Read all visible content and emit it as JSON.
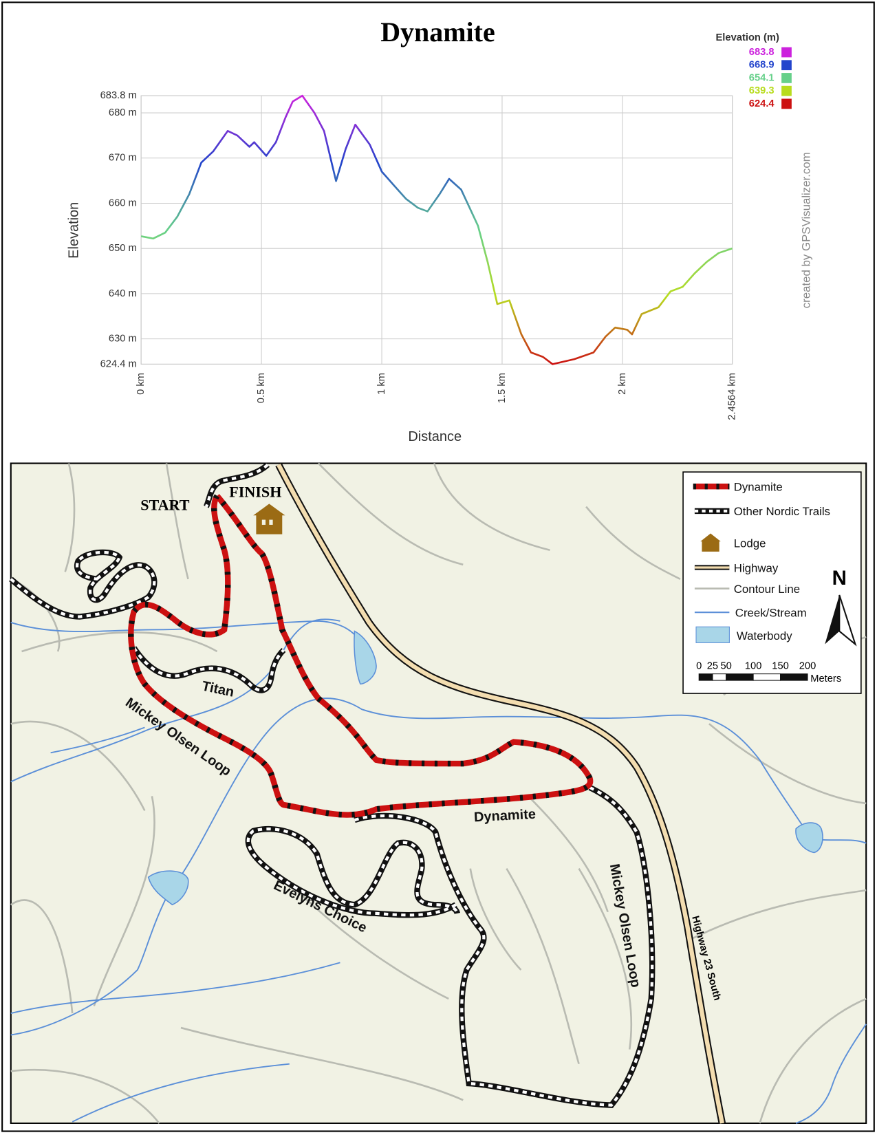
{
  "chart_data": {
    "type": "line",
    "title": "Dynamite",
    "x_label": "Distance",
    "y_label": "Elevation",
    "x": [
      0,
      0.05,
      0.1,
      0.15,
      0.2,
      0.25,
      0.3,
      0.36,
      0.4,
      0.45,
      0.47,
      0.52,
      0.56,
      0.6,
      0.63,
      0.67,
      0.72,
      0.76,
      0.81,
      0.85,
      0.89,
      0.95,
      1.0,
      1.05,
      1.1,
      1.15,
      1.19,
      1.24,
      1.28,
      1.33,
      1.4,
      1.44,
      1.48,
      1.53,
      1.58,
      1.62,
      1.67,
      1.71,
      1.8,
      1.88,
      1.93,
      1.97,
      2.02,
      2.04,
      2.08,
      2.15,
      2.2,
      2.25,
      2.3,
      2.35,
      2.4,
      2.4564
    ],
    "values": [
      652.7,
      652.2,
      653.5,
      657,
      662,
      669,
      671.5,
      676,
      675,
      672.5,
      673.5,
      670.5,
      673.5,
      679,
      682.5,
      683.8,
      680,
      676,
      664.9,
      672,
      677.4,
      673,
      667,
      664,
      661,
      659,
      658.2,
      662,
      665.4,
      663,
      655,
      647,
      637.7,
      638.5,
      631,
      627,
      626,
      624.4,
      625.5,
      627,
      630.5,
      632.5,
      632,
      631,
      635.5,
      637,
      640.5,
      641.5,
      644.5,
      647,
      649,
      650
    ],
    "xlim": [
      0,
      2.4564
    ],
    "ylim": [
      624.4,
      683.8
    ],
    "xticks": [
      {
        "value": 0,
        "label": "0 km"
      },
      {
        "value": 0.5,
        "label": "0.5 km"
      },
      {
        "value": 1,
        "label": "1 km"
      },
      {
        "value": 1.5,
        "label": "1.5 km"
      },
      {
        "value": 2,
        "label": "2 km"
      },
      {
        "value": 2.4564,
        "label": "2.4564 km"
      }
    ],
    "yticks": [
      {
        "value": 624.4,
        "label": "624.4 m"
      },
      {
        "value": 630,
        "label": "630 m"
      },
      {
        "value": 640,
        "label": "640 m"
      },
      {
        "value": 650,
        "label": "650 m"
      },
      {
        "value": 660,
        "label": "660 m"
      },
      {
        "value": 670,
        "label": "670 m"
      },
      {
        "value": 680,
        "label": "680 m"
      },
      {
        "value": 683.8,
        "label": "683.8 m"
      }
    ],
    "grid": true,
    "color_scale": {
      "title": "Elevation (m)",
      "stops": [
        {
          "value": 683.8,
          "color": "#cc22dd"
        },
        {
          "value": 668.9,
          "color": "#2244cc"
        },
        {
          "value": 654.1,
          "color": "#66d08a"
        },
        {
          "value": 639.3,
          "color": "#b8dc1e"
        },
        {
          "value": 624.4,
          "color": "#cc1111"
        }
      ]
    },
    "annotation": "created by GPSVisualizer.com"
  },
  "map": {
    "start": "START",
    "finish": "FINISH",
    "trail_labels": [
      "Titan",
      "Mickey Olsen Loop",
      "Dynamite",
      "Evelyns Choice",
      "Mickey Olsen Loop"
    ],
    "highway_label": "Highway 23 South",
    "legend": [
      "Dynamite",
      "Other Nordic Trails",
      "Lodge",
      "Highway",
      "Contour Line",
      "Creek/Stream",
      "Waterbody"
    ],
    "north": "N",
    "scale": {
      "ticks": [
        0,
        25,
        50,
        100,
        150,
        200
      ],
      "unit": "Meters"
    }
  }
}
